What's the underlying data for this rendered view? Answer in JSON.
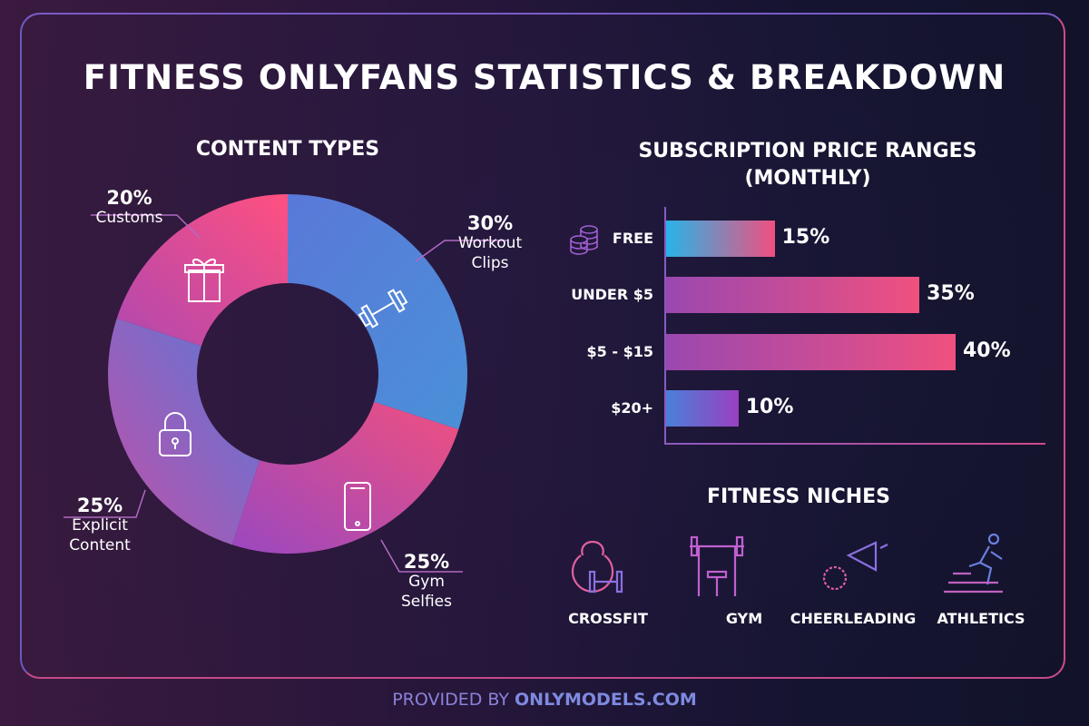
{
  "title": "FITNESS ONLYFANS STATISTICS & BREAKDOWN",
  "footer": {
    "prefix": "PROVIDED BY",
    "brand": "ONLYMODELS.COM"
  },
  "colors": {
    "pink": "#f0507f",
    "purple": "#9a45b0",
    "blue": "#4a86d8",
    "cyan": "#28b4e8"
  },
  "chart_data": [
    {
      "type": "pie",
      "title": "CONTENT TYPES",
      "donut": true,
      "slices": [
        {
          "label": "Workout Clips",
          "value": 30,
          "pct": "30%",
          "icon": "dumbbell-icon"
        },
        {
          "label": "Gym Selfies",
          "value": 25,
          "pct": "25%",
          "icon": "phone-icon"
        },
        {
          "label": "Explicit Content",
          "value": 25,
          "pct": "25%",
          "icon": "lock-icon"
        },
        {
          "label": "Customs",
          "value": 20,
          "pct": "20%",
          "icon": "gift-icon"
        }
      ]
    },
    {
      "type": "bar",
      "orientation": "horizontal",
      "title": "SUBSCRIPTION PRICE RANGES (MONTHLY)",
      "categories": [
        "FREE",
        "UNDER $5",
        "$5 - $15",
        "$20+"
      ],
      "values": [
        15,
        35,
        40,
        10
      ],
      "labels": [
        "15%",
        "35%",
        "40%",
        "10%"
      ],
      "xlim": [
        0,
        40
      ]
    }
  ],
  "niches": {
    "title": "FITNESS NICHES",
    "items": [
      {
        "label": "CROSSFIT",
        "icon": "kettlebell-icon"
      },
      {
        "label": "GYM",
        "icon": "bench-press-icon"
      },
      {
        "label": "CHEERLEADING",
        "icon": "megaphone-icon"
      },
      {
        "label": "ATHLETICS",
        "icon": "runner-icon"
      }
    ]
  }
}
